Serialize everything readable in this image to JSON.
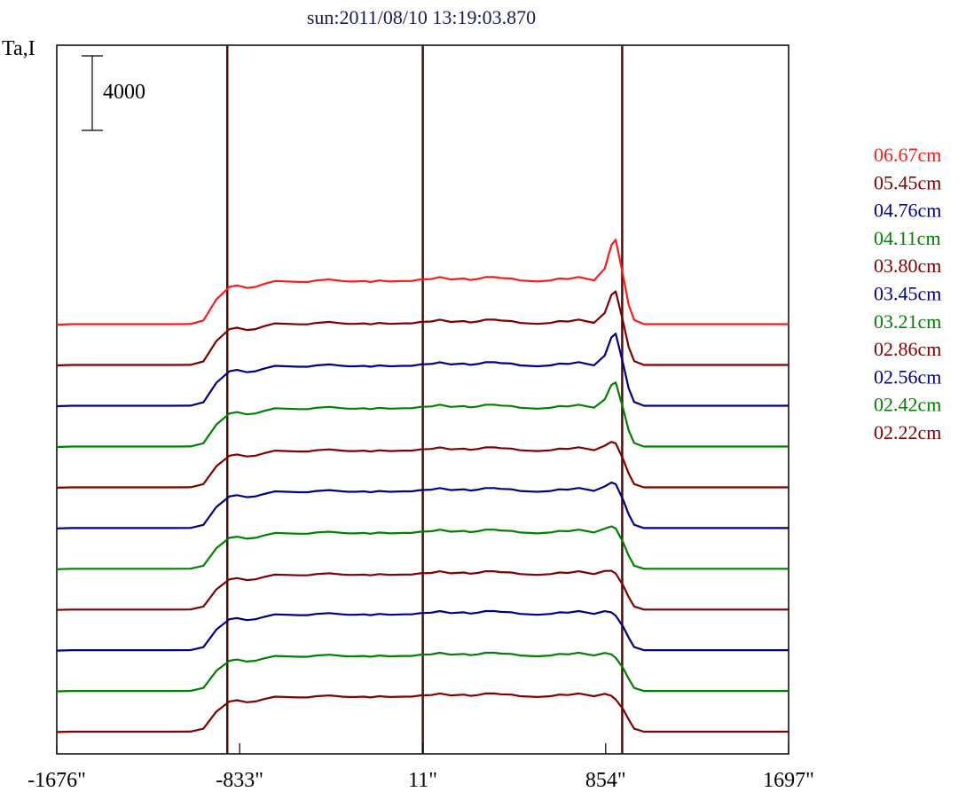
{
  "chart_data": {
    "type": "line",
    "title": "sun:2011/08/10 13:19:03.870",
    "ylabel": "Ta,I",
    "scale_bar_label": "4000",
    "x_ticks": [
      "-1676\"",
      "-833\"",
      "11\"",
      "854\"",
      "1697\""
    ],
    "x_tick_values": [
      -1676,
      -833,
      11,
      854,
      1697
    ],
    "xlim": [
      -1676,
      1697
    ],
    "limb_lines": [
      -890,
      11,
      930
    ],
    "profile_shape": {
      "x": [
        -1676,
        -1610,
        -1450,
        -1300,
        -1200,
        -1150,
        -1060,
        -1000,
        -940,
        -880,
        -845,
        -800,
        -760,
        -720,
        -670,
        -560,
        -520,
        -480,
        -420,
        -360,
        -330,
        -300,
        -260,
        -230,
        -190,
        -140,
        -80,
        -40,
        0,
        50,
        90,
        140,
        200,
        230,
        265,
        300,
        340,
        370,
        420,
        460,
        540,
        600,
        640,
        680,
        730,
        770,
        800,
        850,
        880,
        900,
        935,
        960,
        985,
        1030,
        1060,
        1100,
        1690,
        1697
      ],
      "level": [
        0.035,
        0.045,
        0.045,
        0.045,
        0.045,
        0.045,
        0.047,
        0.12,
        0.55,
        0.8,
        0.83,
        0.78,
        0.8,
        0.86,
        0.92,
        0.9,
        0.9,
        0.93,
        0.95,
        0.92,
        0.91,
        0.91,
        0.92,
        0.9,
        0.93,
        0.91,
        0.92,
        0.92,
        0.95,
        0.96,
        1.0,
        0.95,
        0.97,
        0.94,
        0.96,
        1.0,
        1.0,
        0.98,
        0.97,
        0.93,
        0.91,
        0.93,
        0.97,
        0.96,
        1.0,
        0.96,
        0.93,
        0.99,
        0.94,
        0.85,
        0.6,
        0.35,
        0.12,
        0.045,
        0.045,
        0.045,
        0.045,
        0.055
      ]
    },
    "series": [
      {
        "name": "06.67cm",
        "color": "#ff1a1a",
        "amplitude": 2650,
        "peak": 2400
      },
      {
        "name": "05.45cm",
        "color": "#800000",
        "amplitude": 2550,
        "peak": 1900
      },
      {
        "name": "04.76cm",
        "color": "#000080",
        "amplitude": 2450,
        "peak": 1900
      },
      {
        "name": "04.11cm",
        "color": "#008000",
        "amplitude": 2350,
        "peak": 1550
      },
      {
        "name": "03.80cm",
        "color": "#800000",
        "amplitude": 2250,
        "peak": 550
      },
      {
        "name": "03.45cm",
        "color": "#000080",
        "amplitude": 2250,
        "peak": 550
      },
      {
        "name": "03.21cm",
        "color": "#008000",
        "amplitude": 2200,
        "peak": 400
      },
      {
        "name": "02.86cm",
        "color": "#800000",
        "amplitude": 2150,
        "peak": 200
      },
      {
        "name": "02.56cm",
        "color": "#000080",
        "amplitude": 2200,
        "peak": 80
      },
      {
        "name": "02.42cm",
        "color": "#008000",
        "amplitude": 2150,
        "peak": 50
      },
      {
        "name": "02.22cm",
        "color": "#800000",
        "amplitude": 2150,
        "peak": 0
      }
    ],
    "grid": false,
    "legend_position": "right"
  }
}
